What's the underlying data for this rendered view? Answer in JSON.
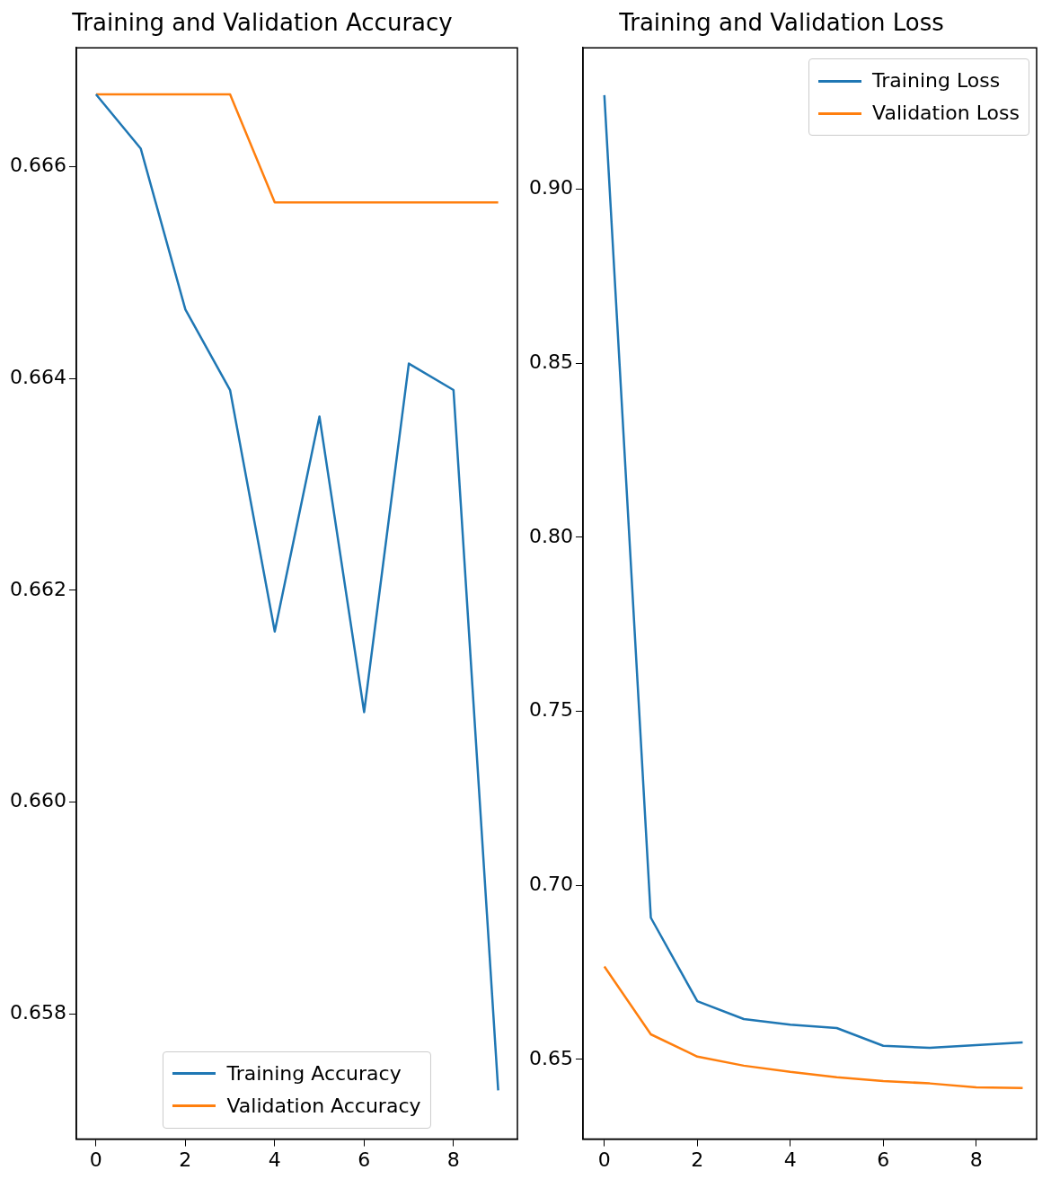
{
  "chart_data": [
    {
      "type": "line",
      "title": "Training and Validation Accuracy",
      "x": [
        0,
        1,
        2,
        3,
        4,
        5,
        6,
        7,
        8,
        9
      ],
      "series": [
        {
          "name": "Training Accuracy",
          "color": "#1f77b4",
          "values": [
            0.66668,
            0.66617,
            0.66465,
            0.66389,
            0.66161,
            0.66364,
            0.66085,
            0.66414,
            0.66389,
            0.65728
          ]
        },
        {
          "name": "Validation Accuracy",
          "color": "#ff7f0e",
          "values": [
            0.66668,
            0.66668,
            0.66668,
            0.66668,
            0.66566,
            0.66566,
            0.66566,
            0.66566,
            0.66566,
            0.66566
          ]
        }
      ],
      "xlim": [
        -0.44,
        9.43
      ],
      "xticks": [
        0,
        2,
        4,
        6,
        8
      ],
      "ylim": [
        0.65682,
        0.66712
      ],
      "yticks": [
        0.658,
        {
          "value": 0.66,
          "label": "0.660"
        },
        0.662,
        0.664,
        0.666
      ],
      "legend": "bottom",
      "marker": "none",
      "line_style": "solid",
      "grid": false
    },
    {
      "type": "line",
      "title": "Training and Validation Loss",
      "x": [
        0,
        1,
        2,
        3,
        4,
        5,
        6,
        7,
        8,
        9
      ],
      "series": [
        {
          "name": "Training Loss",
          "color": "#1f77b4",
          "values": [
            0.927,
            0.6907,
            0.6667,
            0.6616,
            0.66,
            0.659,
            0.6539,
            0.6533,
            0.6541,
            0.6549
          ]
        },
        {
          "name": "Validation Loss",
          "color": "#ff7f0e",
          "values": [
            0.6767,
            0.6572,
            0.6508,
            0.6482,
            0.6464,
            0.6449,
            0.6438,
            0.6431,
            0.642,
            0.6418
          ]
        }
      ],
      "xlim": [
        -0.46,
        9.3
      ],
      "xticks": [
        0,
        2,
        4,
        6,
        8
      ],
      "ylim": [
        0.6271,
        0.9406
      ],
      "yticks": [
        {
          "value": 0.65,
          "label": "0.65"
        },
        {
          "value": 0.7,
          "label": "0.70"
        },
        {
          "value": 0.75,
          "label": "0.75"
        },
        {
          "value": 0.8,
          "label": "0.80"
        },
        {
          "value": 0.85,
          "label": "0.85"
        },
        {
          "value": 0.9,
          "label": "0.90"
        }
      ],
      "legend": "top right",
      "marker": "none",
      "line_style": "solid",
      "grid": false
    }
  ]
}
